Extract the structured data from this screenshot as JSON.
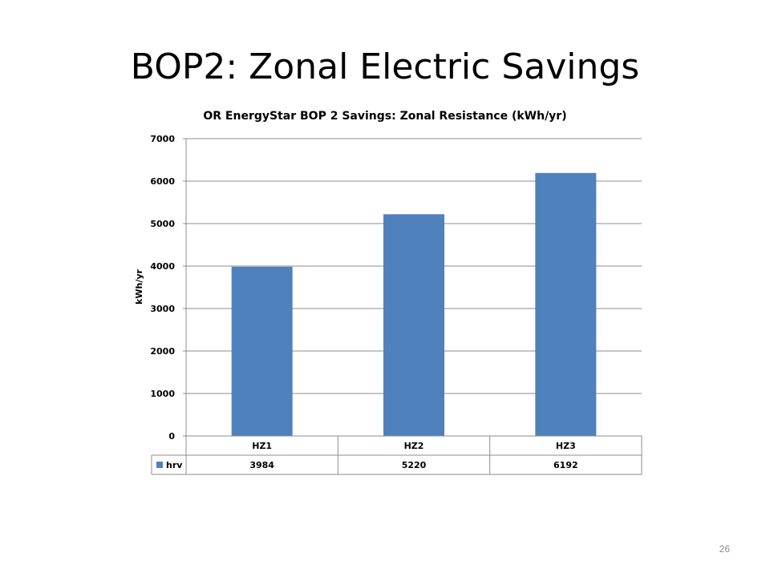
{
  "slide": {
    "title": "BOP2:  Zonal Electric Savings",
    "page_number": "26"
  },
  "chart_data": {
    "type": "bar",
    "title": "OR EnergyStar BOP 2 Savings:  Zonal Resistance (kWh/yr)",
    "xlabel": "",
    "ylabel": "kWh/yr",
    "ylim": [
      0,
      7000
    ],
    "yticks": [
      "0",
      "1000",
      "2000",
      "3000",
      "4000",
      "5000",
      "6000",
      "7000"
    ],
    "grid": true,
    "legend": "data-table",
    "categories": [
      "HZ1",
      "HZ2",
      "HZ3"
    ],
    "series": [
      {
        "name": "hrv",
        "values": [
          3984,
          5220,
          6192
        ],
        "labels": [
          "3984",
          "5220",
          "6192"
        ],
        "color": "#4f81bd"
      }
    ]
  },
  "colors": {
    "bar": "#4f81bd",
    "grid": "#8c8c8c",
    "axis": "#8c8c8c"
  }
}
